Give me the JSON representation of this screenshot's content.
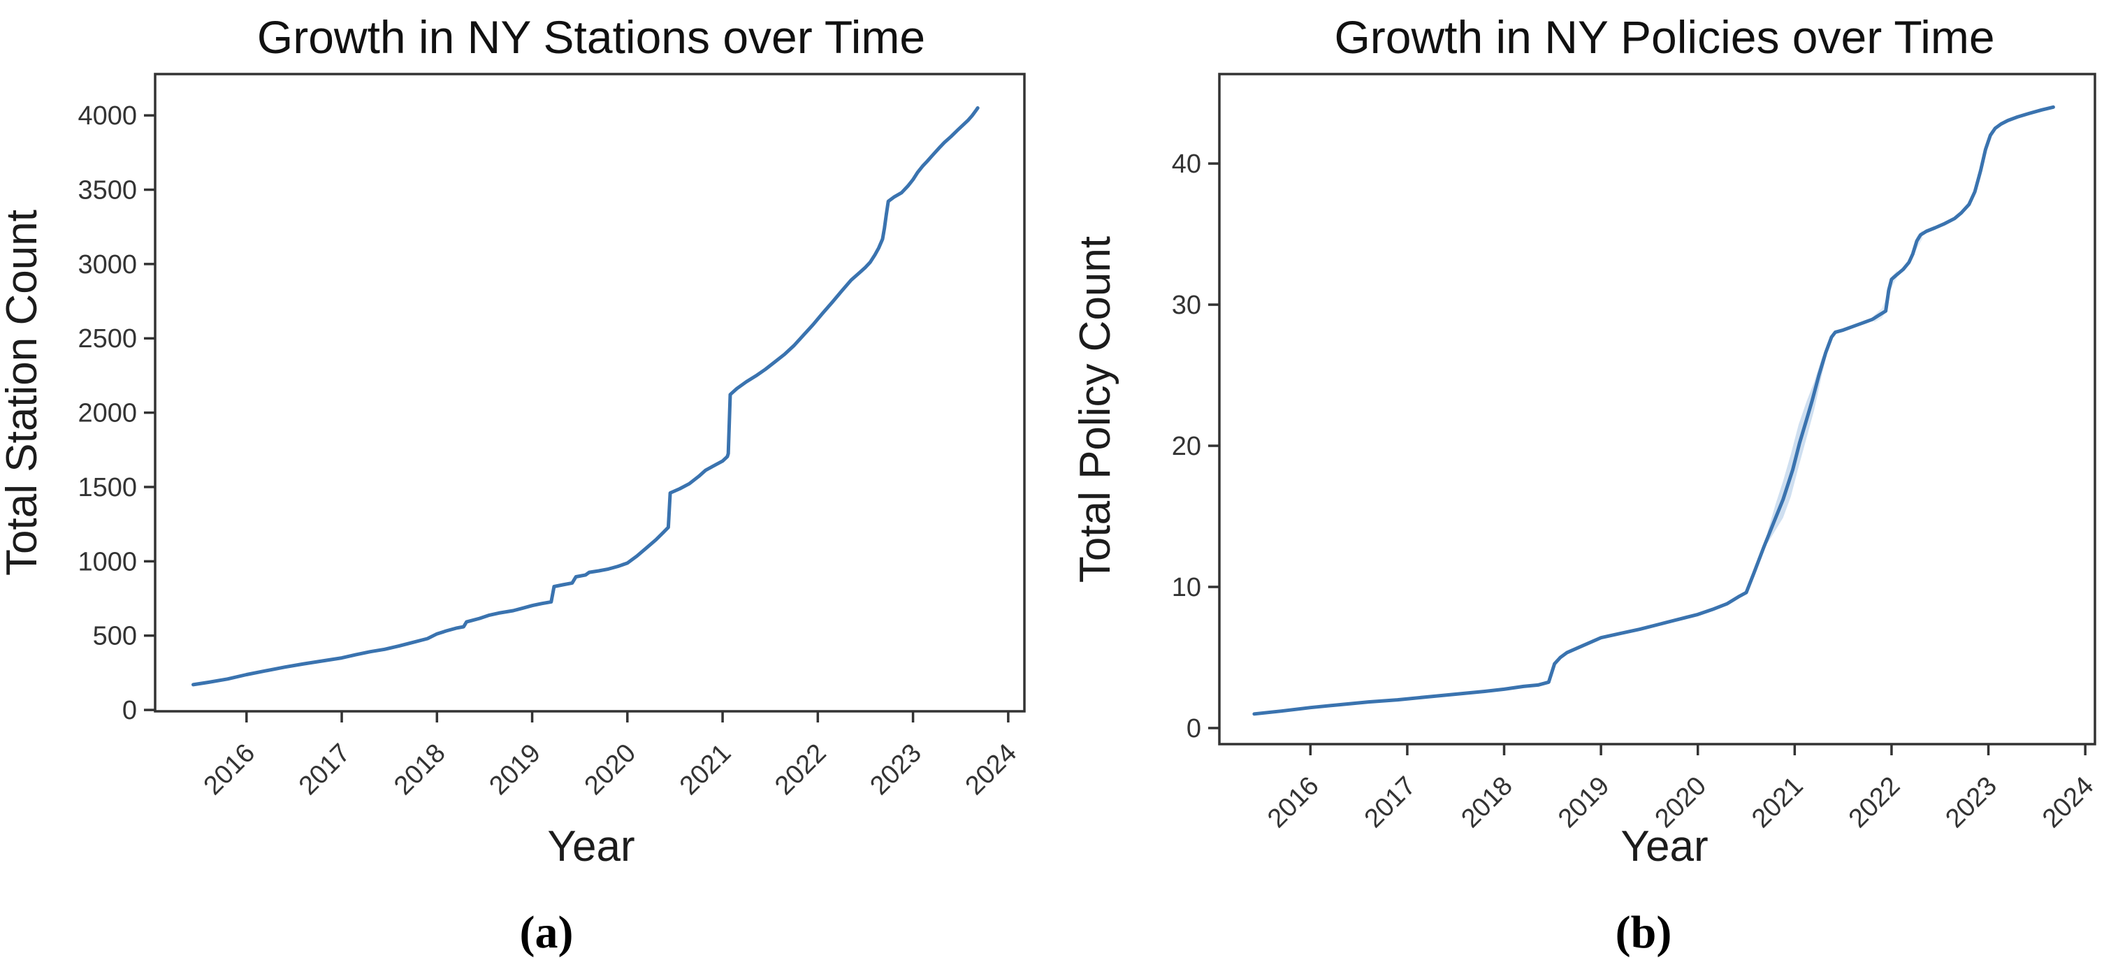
{
  "figure": {
    "background": "#ffffff",
    "line_color": "#3a73af",
    "band_color": "#9fc0e2",
    "spine_color": "#333333",
    "tick_color": "#333333",
    "captions": {
      "a": "(a)",
      "b": "(b)"
    }
  },
  "chart_data": [
    {
      "type": "line",
      "title": "Growth in NY Stations over Time",
      "xlabel": "Year",
      "ylabel": "Total Station Count",
      "caption": "(a)",
      "legend": "none",
      "grid": false,
      "xlim": [
        2015.04,
        2024.17
      ],
      "ylim": [
        -9,
        4278
      ],
      "x_ticks": [
        2016,
        2017,
        2018,
        2019,
        2020,
        2021,
        2022,
        2023,
        2024
      ],
      "y_ticks": [
        0,
        500,
        1000,
        1500,
        2000,
        2500,
        3000,
        3500,
        4000
      ],
      "series": [
        {
          "name": "total-stations",
          "points": [
            [
              2015.44,
              170
            ],
            [
              2015.6,
              186
            ],
            [
              2015.8,
              208
            ],
            [
              2016.0,
              238
            ],
            [
              2016.2,
              263
            ],
            [
              2016.4,
              288
            ],
            [
              2016.6,
              310
            ],
            [
              2016.8,
              330
            ],
            [
              2017.0,
              350
            ],
            [
              2017.15,
              372
            ],
            [
              2017.3,
              392
            ],
            [
              2017.45,
              408
            ],
            [
              2017.6,
              430
            ],
            [
              2017.75,
              455
            ],
            [
              2017.9,
              480
            ],
            [
              2018.0,
              512
            ],
            [
              2018.1,
              532
            ],
            [
              2018.2,
              550
            ],
            [
              2018.28,
              560
            ],
            [
              2018.31,
              592
            ],
            [
              2018.45,
              616
            ],
            [
              2018.55,
              638
            ],
            [
              2018.65,
              652
            ],
            [
              2018.8,
              668
            ],
            [
              2018.9,
              685
            ],
            [
              2019.0,
              702
            ],
            [
              2019.1,
              716
            ],
            [
              2019.2,
              727
            ],
            [
              2019.23,
              830
            ],
            [
              2019.32,
              842
            ],
            [
              2019.42,
              854
            ],
            [
              2019.46,
              896
            ],
            [
              2019.56,
              908
            ],
            [
              2019.6,
              926
            ],
            [
              2019.7,
              936
            ],
            [
              2019.8,
              948
            ],
            [
              2019.9,
              966
            ],
            [
              2020.0,
              988
            ],
            [
              2020.1,
              1035
            ],
            [
              2020.2,
              1090
            ],
            [
              2020.3,
              1145
            ],
            [
              2020.38,
              1196
            ],
            [
              2020.43,
              1228
            ],
            [
              2020.45,
              1460
            ],
            [
              2020.55,
              1488
            ],
            [
              2020.65,
              1522
            ],
            [
              2020.75,
              1572
            ],
            [
              2020.82,
              1612
            ],
            [
              2020.9,
              1640
            ],
            [
              2021.0,
              1675
            ],
            [
              2021.05,
              1705
            ],
            [
              2021.06,
              1725
            ],
            [
              2021.08,
              2122
            ],
            [
              2021.15,
              2162
            ],
            [
              2021.25,
              2208
            ],
            [
              2021.35,
              2248
            ],
            [
              2021.45,
              2292
            ],
            [
              2021.55,
              2342
            ],
            [
              2021.65,
              2392
            ],
            [
              2021.75,
              2452
            ],
            [
              2021.85,
              2522
            ],
            [
              2021.95,
              2592
            ],
            [
              2022.05,
              2668
            ],
            [
              2022.15,
              2742
            ],
            [
              2022.25,
              2818
            ],
            [
              2022.35,
              2892
            ],
            [
              2022.45,
              2948
            ],
            [
              2022.5,
              2978
            ],
            [
              2022.55,
              3012
            ],
            [
              2022.6,
              3062
            ],
            [
              2022.64,
              3108
            ],
            [
              2022.68,
              3168
            ],
            [
              2022.7,
              3242
            ],
            [
              2022.72,
              3334
            ],
            [
              2022.74,
              3422
            ],
            [
              2022.8,
              3450
            ],
            [
              2022.88,
              3480
            ],
            [
              2022.95,
              3528
            ],
            [
              2023.0,
              3568
            ],
            [
              2023.05,
              3618
            ],
            [
              2023.1,
              3658
            ],
            [
              2023.15,
              3692
            ],
            [
              2023.2,
              3728
            ],
            [
              2023.27,
              3778
            ],
            [
              2023.33,
              3818
            ],
            [
              2023.4,
              3858
            ],
            [
              2023.47,
              3902
            ],
            [
              2023.53,
              3938
            ],
            [
              2023.58,
              3968
            ],
            [
              2023.62,
              3998
            ],
            [
              2023.66,
              4032
            ],
            [
              2023.68,
              4050
            ]
          ]
        }
      ],
      "bands": []
    },
    {
      "type": "line",
      "title": "Growth in NY Policies over Time",
      "xlabel": "Year",
      "ylabel": "Total Policy Count",
      "caption": "(b)",
      "legend": "none",
      "grid": false,
      "xlim": [
        2015.06,
        2024.1
      ],
      "ylim": [
        -1.14,
        46.34
      ],
      "x_ticks": [
        2016,
        2017,
        2018,
        2019,
        2020,
        2021,
        2022,
        2023,
        2024
      ],
      "y_ticks": [
        0,
        10,
        20,
        30,
        40
      ],
      "series": [
        {
          "name": "total-policies",
          "points": [
            [
              2015.42,
              1.0
            ],
            [
              2015.7,
              1.2
            ],
            [
              2016.0,
              1.45
            ],
            [
              2016.3,
              1.65
            ],
            [
              2016.6,
              1.85
            ],
            [
              2016.9,
              2.0
            ],
            [
              2017.2,
              2.2
            ],
            [
              2017.5,
              2.4
            ],
            [
              2017.8,
              2.6
            ],
            [
              2018.0,
              2.75
            ],
            [
              2018.2,
              2.95
            ],
            [
              2018.35,
              3.05
            ],
            [
              2018.46,
              3.25
            ],
            [
              2018.52,
              4.55
            ],
            [
              2018.58,
              5.0
            ],
            [
              2018.65,
              5.35
            ],
            [
              2018.8,
              5.8
            ],
            [
              2019.0,
              6.4
            ],
            [
              2019.2,
              6.7
            ],
            [
              2019.4,
              7.0
            ],
            [
              2019.6,
              7.35
            ],
            [
              2019.8,
              7.7
            ],
            [
              2020.0,
              8.05
            ],
            [
              2020.15,
              8.4
            ],
            [
              2020.3,
              8.8
            ],
            [
              2020.42,
              9.3
            ],
            [
              2020.5,
              9.6
            ],
            [
              2020.58,
              11.0
            ],
            [
              2020.68,
              12.8
            ],
            [
              2020.78,
              14.5
            ],
            [
              2020.88,
              16.2
            ],
            [
              2020.98,
              18.3
            ],
            [
              2021.05,
              20.2
            ],
            [
              2021.12,
              21.8
            ],
            [
              2021.18,
              23.2
            ],
            [
              2021.25,
              25.0
            ],
            [
              2021.32,
              26.6
            ],
            [
              2021.38,
              27.7
            ],
            [
              2021.42,
              28.05
            ],
            [
              2021.5,
              28.2
            ],
            [
              2021.6,
              28.45
            ],
            [
              2021.7,
              28.7
            ],
            [
              2021.8,
              28.95
            ],
            [
              2021.88,
              29.3
            ],
            [
              2021.94,
              29.55
            ],
            [
              2021.97,
              31.0
            ],
            [
              2022.0,
              31.8
            ],
            [
              2022.05,
              32.1
            ],
            [
              2022.12,
              32.5
            ],
            [
              2022.18,
              33.0
            ],
            [
              2022.22,
              33.6
            ],
            [
              2022.26,
              34.5
            ],
            [
              2022.3,
              34.95
            ],
            [
              2022.36,
              35.2
            ],
            [
              2022.45,
              35.45
            ],
            [
              2022.55,
              35.75
            ],
            [
              2022.65,
              36.1
            ],
            [
              2022.72,
              36.5
            ],
            [
              2022.8,
              37.1
            ],
            [
              2022.86,
              38.0
            ],
            [
              2022.92,
              39.5
            ],
            [
              2022.97,
              41.0
            ],
            [
              2023.02,
              42.0
            ],
            [
              2023.07,
              42.5
            ],
            [
              2023.13,
              42.8
            ],
            [
              2023.2,
              43.05
            ],
            [
              2023.3,
              43.3
            ],
            [
              2023.42,
              43.55
            ],
            [
              2023.55,
              43.8
            ],
            [
              2023.67,
              44.0
            ]
          ]
        }
      ],
      "bands": [
        {
          "name": "ci-band-main",
          "opacity": 0.5,
          "points": [
            [
              2020.72,
              13.5,
              0.4
            ],
            [
              2020.8,
              14.9,
              0.9
            ],
            [
              2020.88,
              16.2,
              1.3
            ],
            [
              2020.96,
              17.9,
              1.5
            ],
            [
              2021.04,
              20.0,
              1.5
            ],
            [
              2021.12,
              21.8,
              1.3
            ],
            [
              2021.2,
              23.5,
              1.0
            ],
            [
              2021.28,
              25.6,
              0.6
            ],
            [
              2021.34,
              26.9,
              0.25
            ]
          ]
        },
        {
          "name": "ci-band-2022-jump",
          "opacity": 0.3,
          "points": [
            [
              2021.82,
              29.0,
              0.25
            ],
            [
              2021.9,
              29.4,
              0.35
            ],
            [
              2021.96,
              30.2,
              0.5
            ],
            [
              2022.0,
              31.6,
              0.4
            ],
            [
              2022.06,
              32.2,
              0.25
            ]
          ]
        },
        {
          "name": "ci-band-2022-step",
          "opacity": 0.3,
          "points": [
            [
              2022.2,
              33.4,
              0.3
            ],
            [
              2022.26,
              34.4,
              0.45
            ],
            [
              2022.32,
              35.0,
              0.3
            ]
          ]
        },
        {
          "name": "ci-band-2023-rise",
          "opacity": 0.3,
          "points": [
            [
              2022.86,
              38.0,
              0.3
            ],
            [
              2022.92,
              39.5,
              0.5
            ],
            [
              2022.98,
              41.2,
              0.4
            ],
            [
              2023.03,
              42.1,
              0.25
            ]
          ]
        }
      ]
    }
  ]
}
